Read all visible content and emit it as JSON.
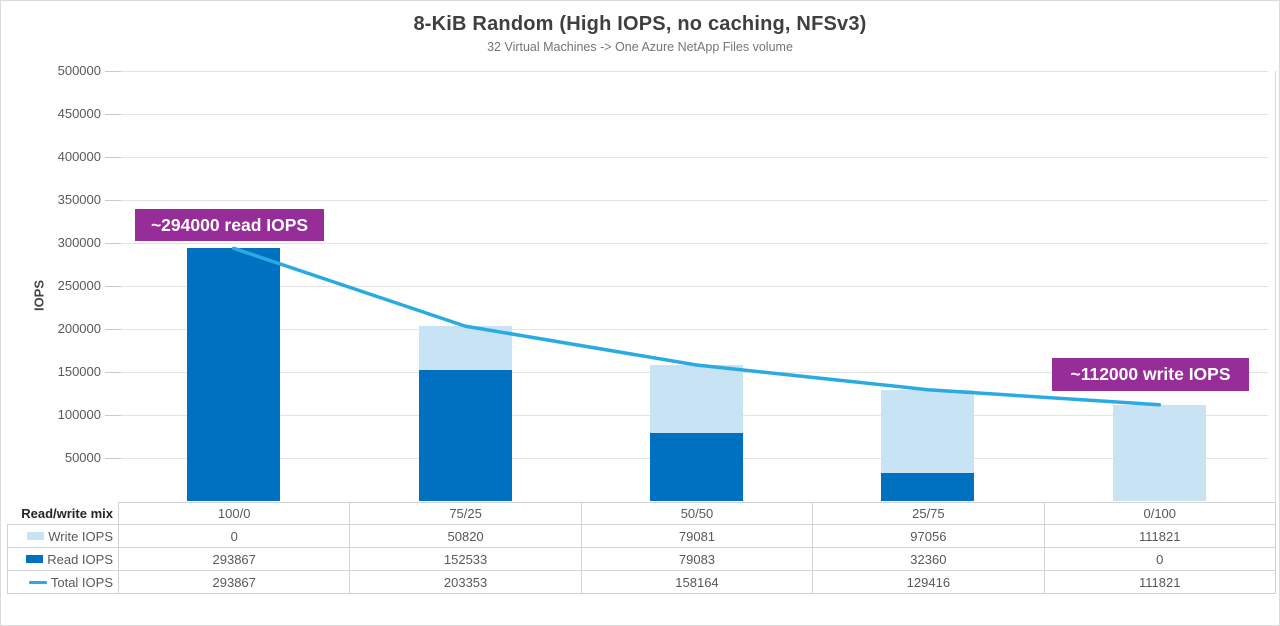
{
  "chart_data": {
    "type": "bar",
    "chart_kind": "stacked-column-with-line-overlay",
    "title": "8-KiB Random (High IOPS, no caching, NFSv3)",
    "subtitle": "32 Virtual Machines -> One Azure NetApp Files volume",
    "ylabel": "IOPS",
    "xlabel": "",
    "ylim": [
      0,
      500000
    ],
    "ytick_step": 50000,
    "yticks": [
      50000,
      100000,
      150000,
      200000,
      250000,
      300000,
      350000,
      400000,
      450000,
      500000
    ],
    "grid": true,
    "legend_position": "data-table-left-column",
    "row_header": "Read/write mix",
    "categories": [
      "100/0",
      "75/25",
      "50/50",
      "25/75",
      "0/100"
    ],
    "series": [
      {
        "name": "Write IOPS",
        "type": "bar",
        "stack_position": "top",
        "color": "#C7E3F4",
        "values": [
          0,
          50820,
          79081,
          97056,
          111821
        ]
      },
      {
        "name": "Read IOPS",
        "type": "bar",
        "stack_position": "bottom",
        "color": "#0071C1",
        "values": [
          293867,
          152533,
          79083,
          32360,
          0
        ]
      },
      {
        "name": "Total IOPS",
        "type": "line",
        "color": "#29ABE2",
        "values": [
          293867,
          203353,
          158164,
          129416,
          111821
        ]
      }
    ],
    "annotations": [
      {
        "text": "~294000 read IOPS",
        "bg": "#962D98",
        "fg": "#FFFFFF"
      },
      {
        "text": "~112000 write IOPS",
        "bg": "#962D98",
        "fg": "#FFFFFF"
      }
    ],
    "colors": {
      "grid": "#E4E4E4",
      "table_border": "#D2D2D2",
      "axis_text": "#595959"
    }
  }
}
